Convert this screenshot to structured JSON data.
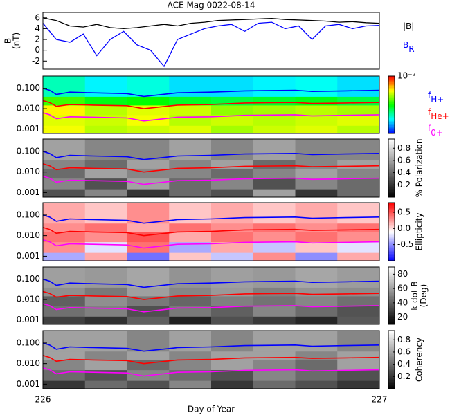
{
  "chart_data": [
    {
      "type": "line",
      "title": "ACE Mag 0022-08-14",
      "ylabel": [
        "B",
        "(nT)"
      ],
      "x": [
        226,
        226.04,
        226.08,
        226.12,
        226.16,
        226.2,
        226.24,
        226.28,
        226.32,
        226.36,
        226.4,
        226.44,
        226.48,
        226.52,
        226.56,
        226.6,
        226.64,
        226.68,
        226.72,
        226.76,
        226.8,
        226.84,
        226.88,
        226.92,
        226.96,
        227
      ],
      "xlim": [
        226,
        227
      ],
      "ylim": [
        -3.5,
        7
      ],
      "yticks": [
        -2,
        0,
        2,
        4,
        6
      ],
      "legend": "right",
      "series": [
        {
          "name": "|B|",
          "color": "#000000",
          "values": [
            6,
            5.5,
            4.5,
            4.3,
            4.8,
            4.2,
            4.0,
            4.2,
            4.5,
            4.8,
            4.5,
            5.0,
            5.2,
            5.5,
            5.6,
            5.7,
            5.8,
            5.9,
            5.7,
            5.6,
            5.5,
            5.4,
            5.2,
            5.3,
            5.1,
            5.0
          ]
        },
        {
          "name": "B",
          "subscript": "R",
          "color": "#0000ff",
          "values": [
            5,
            2,
            1.5,
            3,
            -1,
            2,
            3.5,
            1,
            0,
            -3,
            2,
            3,
            4,
            4.5,
            4.8,
            3.5,
            5,
            5.2,
            4,
            4.5,
            2,
            4.5,
            4.8,
            4,
            4.5,
            4.6
          ]
        }
      ]
    },
    {
      "type": "spectrogram",
      "colormap": "rainbow",
      "xlim": [
        226,
        227
      ],
      "ylim": [
        0.0006,
        0.4
      ],
      "log_y": true,
      "yticks": [
        0.001,
        {
          "value": 0.01,
          "label": "0.010"
        },
        {
          "value": 0.1,
          "label": "0.100"
        }
      ],
      "xbins": [
        226,
        226.125,
        226.25,
        226.375,
        226.5,
        226.625,
        226.75,
        226.875,
        227
      ],
      "ybins": [
        0.0006,
        0.0015,
        0.005,
        0.015,
        0.04,
        0.4
      ],
      "z": [
        [
          -3.3,
          -3.6,
          -3.5,
          -3.4,
          -3.7,
          -3.5,
          -3.4,
          -3.6
        ],
        [
          -3.4,
          -3.5,
          -3.3,
          -3.6,
          -3.5,
          -3.6,
          -3.5,
          -3.4
        ],
        [
          -3.2,
          -3.6,
          -3.4,
          -3.5,
          -3.8,
          -3.7,
          -3.6,
          -3.7
        ],
        [
          -4.2,
          -4.6,
          -4.5,
          -4.7,
          -4.8,
          -4.7,
          -4.6,
          -4.8
        ],
        [
          -5.4,
          -5.8,
          -5.6,
          -5.9,
          -5.9,
          -5.8,
          -5.7,
          -5.9
        ]
      ],
      "zlim": [
        -7,
        -2
      ],
      "colorbar_ticks": [
        {
          "value": -2,
          "label": "10⁻²"
        }
      ],
      "x": [
        226,
        226.02,
        226.04,
        226.08,
        226.15,
        226.25,
        226.3,
        226.4,
        226.5,
        226.6,
        226.75,
        226.8,
        226.9,
        227
      ],
      "series": [
        {
          "name": "f",
          "subscript": "H+",
          "color": "#0000ff",
          "values": [
            0.1,
            0.08,
            0.05,
            0.065,
            0.06,
            0.055,
            0.04,
            0.06,
            0.065,
            0.075,
            0.08,
            0.07,
            0.075,
            0.08
          ]
        },
        {
          "name": "f",
          "subscript": "He+",
          "color": "#ff0000",
          "values": [
            0.025,
            0.02,
            0.013,
            0.016,
            0.015,
            0.014,
            0.01,
            0.015,
            0.016,
            0.019,
            0.02,
            0.018,
            0.019,
            0.02
          ]
        },
        {
          "name": "f",
          "subscript": "0+",
          "color": "#ff00ff",
          "values": [
            0.0063,
            0.005,
            0.0032,
            0.004,
            0.0038,
            0.0035,
            0.0025,
            0.0038,
            0.004,
            0.0047,
            0.005,
            0.0044,
            0.0047,
            0.005
          ]
        }
      ]
    },
    {
      "type": "spectrogram",
      "colormap": "gray",
      "xlim": [
        226,
        227
      ],
      "ylim": [
        0.0006,
        0.4
      ],
      "log_y": true,
      "yticks": [
        0.001,
        {
          "value": 0.01,
          "label": "0.010"
        },
        {
          "value": 0.1,
          "label": "0.100"
        }
      ],
      "xbins": [
        226,
        226.125,
        226.25,
        226.375,
        226.5,
        226.625,
        226.75,
        226.875,
        227
      ],
      "ybins": [
        0.0006,
        0.0015,
        0.005,
        0.015,
        0.04,
        0.4
      ],
      "z": [
        [
          0.3,
          0.5,
          0.2,
          0.4,
          0.3,
          0.6,
          0.2,
          0.4
        ],
        [
          0.5,
          0.3,
          0.6,
          0.4,
          0.5,
          0.3,
          0.5,
          0.4
        ],
        [
          0.4,
          0.6,
          0.5,
          0.5,
          0.4,
          0.5,
          0.6,
          0.5
        ],
        [
          0.5,
          0.4,
          0.6,
          0.5,
          0.6,
          0.4,
          0.5,
          0.6
        ],
        [
          0.6,
          0.5,
          0.5,
          0.6,
          0.5,
          0.6,
          0.5,
          0.5
        ]
      ],
      "zlim": [
        0,
        0.95
      ],
      "colorbar_ticks": [
        0.2,
        0.4,
        0.6,
        0.8
      ],
      "colorbar_label": [
        "% Polarization"
      ],
      "x": [
        226,
        226.02,
        226.04,
        226.08,
        226.15,
        226.25,
        226.3,
        226.4,
        226.5,
        226.6,
        226.75,
        226.8,
        226.9,
        227
      ],
      "series": [
        {
          "color": "#0000ff",
          "values": [
            0.1,
            0.08,
            0.05,
            0.065,
            0.06,
            0.055,
            0.04,
            0.06,
            0.065,
            0.075,
            0.08,
            0.07,
            0.075,
            0.08
          ]
        },
        {
          "color": "#ff0000",
          "values": [
            0.025,
            0.02,
            0.013,
            0.016,
            0.015,
            0.014,
            0.01,
            0.015,
            0.016,
            0.019,
            0.02,
            0.018,
            0.019,
            0.02
          ]
        },
        {
          "color": "#ff00ff",
          "values": [
            0.0063,
            0.005,
            0.0032,
            0.004,
            0.0038,
            0.0035,
            0.0025,
            0.0038,
            0.004,
            0.0047,
            0.005,
            0.0044,
            0.0047,
            0.005
          ]
        }
      ]
    },
    {
      "type": "spectrogram",
      "colormap": "bwr",
      "xlim": [
        226,
        227
      ],
      "ylim": [
        0.0006,
        0.4
      ],
      "log_y": true,
      "yticks": [
        0.001,
        {
          "value": 0.01,
          "label": "0.010"
        },
        {
          "value": 0.1,
          "label": "0.100"
        }
      ],
      "xbins": [
        226,
        226.125,
        226.25,
        226.375,
        226.5,
        226.625,
        226.75,
        226.875,
        227
      ],
      "ybins": [
        0.0006,
        0.0015,
        0.005,
        0.015,
        0.04,
        0.4
      ],
      "z": [
        [
          -0.4,
          0.2,
          -0.6,
          0.1,
          -0.3,
          0.3,
          -0.5,
          0.2
        ],
        [
          0.3,
          -0.2,
          0.4,
          -0.4,
          0.2,
          -0.3,
          0.1,
          -0.2
        ],
        [
          0.4,
          0.3,
          0.5,
          0.2,
          0.4,
          0.3,
          0.4,
          0.3
        ],
        [
          0.3,
          0.4,
          0.2,
          0.4,
          0.3,
          0.4,
          0.3,
          0.4
        ],
        [
          0.2,
          0.1,
          0.3,
          0.1,
          0.2,
          0.1,
          0.2,
          0.1
        ]
      ],
      "zlim": [
        -1,
        0.8
      ],
      "colorbar_ticks": [
        -0.5,
        {
          "value": 0,
          "label": "0.0"
        },
        0.5
      ],
      "colorbar_label": [
        "Ellipticity"
      ],
      "x": [
        226,
        226.02,
        226.04,
        226.08,
        226.15,
        226.25,
        226.3,
        226.4,
        226.5,
        226.6,
        226.75,
        226.8,
        226.9,
        227
      ],
      "series": [
        {
          "color": "#0000ff",
          "values": [
            0.1,
            0.08,
            0.05,
            0.065,
            0.06,
            0.055,
            0.04,
            0.06,
            0.065,
            0.075,
            0.08,
            0.07,
            0.075,
            0.08
          ]
        },
        {
          "color": "#ff0000",
          "values": [
            0.025,
            0.02,
            0.013,
            0.016,
            0.015,
            0.014,
            0.01,
            0.015,
            0.016,
            0.019,
            0.02,
            0.018,
            0.019,
            0.02
          ]
        },
        {
          "color": "#ff00ff",
          "values": [
            0.0063,
            0.005,
            0.0032,
            0.004,
            0.0038,
            0.0035,
            0.0025,
            0.0038,
            0.004,
            0.0047,
            0.005,
            0.0044,
            0.0047,
            0.005
          ]
        }
      ]
    },
    {
      "type": "spectrogram",
      "colormap": "gray",
      "xlim": [
        226,
        227
      ],
      "ylim": [
        0.0006,
        0.4
      ],
      "log_y": true,
      "yticks": [
        0.001,
        {
          "value": 0.01,
          "label": "0.010"
        },
        {
          "value": 0.1,
          "label": "0.100"
        }
      ],
      "xbins": [
        226,
        226.125,
        226.25,
        226.375,
        226.5,
        226.625,
        226.75,
        226.875,
        227
      ],
      "ybins": [
        0.0006,
        0.0015,
        0.005,
        0.015,
        0.04,
        0.4
      ],
      "z": [
        [
          30,
          25,
          40,
          20,
          35,
          28,
          22,
          38
        ],
        [
          45,
          50,
          35,
          48,
          40,
          52,
          44,
          36
        ],
        [
          40,
          55,
          48,
          42,
          50,
          46,
          52,
          45
        ],
        [
          55,
          48,
          60,
          52,
          58,
          50,
          56,
          54
        ],
        [
          60,
          58,
          62,
          56,
          60,
          58,
          62,
          59
        ]
      ],
      "zlim": [
        10,
        90
      ],
      "colorbar_ticks": [
        20,
        40,
        60,
        80
      ],
      "colorbar_label": [
        "k dot B",
        "(Deg)"
      ],
      "x": [
        226,
        226.02,
        226.04,
        226.08,
        226.15,
        226.25,
        226.3,
        226.4,
        226.5,
        226.6,
        226.75,
        226.8,
        226.9,
        227
      ],
      "series": [
        {
          "color": "#0000ff",
          "values": [
            0.1,
            0.08,
            0.05,
            0.065,
            0.06,
            0.055,
            0.04,
            0.06,
            0.065,
            0.075,
            0.08,
            0.07,
            0.075,
            0.08
          ]
        },
        {
          "color": "#ff0000",
          "values": [
            0.025,
            0.02,
            0.013,
            0.016,
            0.015,
            0.014,
            0.01,
            0.015,
            0.016,
            0.019,
            0.02,
            0.018,
            0.019,
            0.02
          ]
        },
        {
          "color": "#ff00ff",
          "values": [
            0.0063,
            0.005,
            0.0032,
            0.004,
            0.0038,
            0.0035,
            0.0025,
            0.0038,
            0.004,
            0.0047,
            0.005,
            0.0044,
            0.0047,
            0.005
          ]
        }
      ]
    },
    {
      "type": "spectrogram",
      "colormap": "gray",
      "xlim": [
        226,
        227
      ],
      "ylim": [
        0.0006,
        0.4
      ],
      "log_y": true,
      "yticks": [
        0.001,
        {
          "value": 0.01,
          "label": "0.010"
        },
        {
          "value": 0.1,
          "label": "0.100"
        }
      ],
      "xbins": [
        226,
        226.125,
        226.25,
        226.375,
        226.5,
        226.625,
        226.75,
        226.875,
        227
      ],
      "ybins": [
        0.0006,
        0.0015,
        0.005,
        0.015,
        0.04,
        0.4
      ],
      "z": [
        [
          0.2,
          0.4,
          0.3,
          0.5,
          0.2,
          0.4,
          0.3,
          0.2
        ],
        [
          0.4,
          0.3,
          0.5,
          0.4,
          0.3,
          0.5,
          0.4,
          0.3
        ],
        [
          0.5,
          0.6,
          0.4,
          0.5,
          0.6,
          0.5,
          0.4,
          0.6
        ],
        [
          0.6,
          0.5,
          0.6,
          0.5,
          0.6,
          0.6,
          0.5,
          0.6
        ],
        [
          0.6,
          0.6,
          0.5,
          0.6,
          0.5,
          0.6,
          0.6,
          0.5
        ]
      ],
      "zlim": [
        0,
        0.95
      ],
      "colorbar_ticks": [
        0.2,
        0.4,
        0.6,
        0.8
      ],
      "colorbar_label": [
        "Coherency"
      ],
      "x": [
        226,
        226.02,
        226.04,
        226.08,
        226.15,
        226.25,
        226.3,
        226.4,
        226.5,
        226.6,
        226.75,
        226.8,
        226.9,
        227
      ],
      "xticks": [
        226,
        227
      ],
      "xlabel": "Day of Year",
      "series": [
        {
          "color": "#0000ff",
          "values": [
            0.1,
            0.08,
            0.05,
            0.065,
            0.06,
            0.055,
            0.04,
            0.06,
            0.065,
            0.075,
            0.08,
            0.07,
            0.075,
            0.08
          ]
        },
        {
          "color": "#ff0000",
          "values": [
            0.025,
            0.02,
            0.013,
            0.016,
            0.015,
            0.014,
            0.01,
            0.015,
            0.016,
            0.019,
            0.02,
            0.018,
            0.019,
            0.02
          ]
        },
        {
          "color": "#ff00ff",
          "values": [
            0.0063,
            0.005,
            0.0032,
            0.004,
            0.0038,
            0.0035,
            0.0025,
            0.0038,
            0.004,
            0.0047,
            0.005,
            0.0044,
            0.0047,
            0.005
          ]
        }
      ]
    }
  ]
}
